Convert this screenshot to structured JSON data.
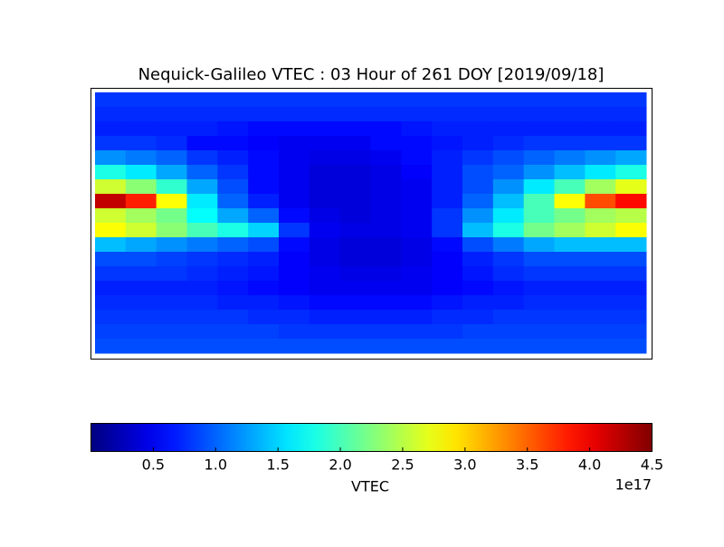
{
  "chart_data": {
    "type": "heatmap",
    "title": "Nequick-Galileo VTEC : 03 Hour of 261 DOY [2019/09/18]",
    "colormap": "jet",
    "values": [
      [
        0.8,
        0.8,
        0.8,
        0.8,
        0.8,
        0.8,
        0.8,
        0.8,
        0.8,
        0.8,
        0.8,
        0.8,
        0.8,
        0.8,
        0.8,
        0.8,
        0.8,
        0.8
      ],
      [
        0.75,
        0.75,
        0.75,
        0.75,
        0.75,
        0.75,
        0.75,
        0.75,
        0.75,
        0.75,
        0.75,
        0.75,
        0.75,
        0.75,
        0.75,
        0.75,
        0.75,
        0.75
      ],
      [
        0.7,
        0.7,
        0.7,
        0.7,
        0.65,
        0.6,
        0.6,
        0.6,
        0.6,
        0.6,
        0.65,
        0.7,
        0.7,
        0.7,
        0.7,
        0.7,
        0.7,
        0.7
      ],
      [
        0.8,
        0.8,
        0.75,
        0.6,
        0.6,
        0.55,
        0.5,
        0.5,
        0.5,
        0.6,
        0.6,
        0.65,
        0.7,
        0.75,
        0.8,
        0.8,
        0.8,
        0.8
      ],
      [
        1.2,
        1.1,
        1.0,
        0.8,
        0.7,
        0.6,
        0.5,
        0.45,
        0.45,
        0.5,
        0.6,
        0.7,
        0.8,
        0.9,
        1.0,
        1.1,
        1.2,
        1.3
      ],
      [
        1.8,
        1.6,
        1.3,
        1.0,
        0.8,
        0.6,
        0.5,
        0.4,
        0.4,
        0.45,
        0.55,
        0.7,
        0.9,
        1.0,
        1.2,
        1.4,
        1.6,
        1.8
      ],
      [
        2.6,
        2.3,
        1.9,
        1.3,
        0.9,
        0.6,
        0.5,
        0.4,
        0.4,
        0.45,
        0.5,
        0.7,
        0.9,
        1.2,
        1.6,
        2.0,
        2.4,
        2.7
      ],
      [
        4.2,
        3.8,
        2.8,
        1.6,
        1.0,
        0.7,
        0.5,
        0.4,
        0.4,
        0.45,
        0.5,
        0.7,
        1.0,
        1.4,
        2.0,
        2.8,
        3.6,
        3.9
      ],
      [
        2.6,
        2.4,
        2.2,
        1.7,
        1.3,
        1.0,
        0.6,
        0.45,
        0.4,
        0.45,
        0.5,
        0.8,
        1.2,
        1.6,
        2.0,
        2.2,
        2.4,
        2.5
      ],
      [
        2.8,
        2.6,
        2.3,
        2.0,
        1.8,
        1.5,
        0.8,
        0.5,
        0.45,
        0.45,
        0.5,
        0.8,
        1.4,
        1.8,
        2.2,
        2.4,
        2.6,
        2.8
      ],
      [
        1.4,
        1.3,
        1.2,
        1.1,
        1.0,
        0.9,
        0.6,
        0.45,
        0.4,
        0.4,
        0.45,
        0.6,
        0.9,
        1.1,
        1.3,
        1.4,
        1.4,
        1.4
      ],
      [
        0.9,
        0.9,
        0.85,
        0.8,
        0.75,
        0.7,
        0.55,
        0.45,
        0.4,
        0.4,
        0.45,
        0.55,
        0.7,
        0.8,
        0.9,
        0.9,
        0.9,
        0.9
      ],
      [
        0.8,
        0.8,
        0.8,
        0.75,
        0.7,
        0.65,
        0.55,
        0.5,
        0.45,
        0.45,
        0.5,
        0.55,
        0.65,
        0.75,
        0.8,
        0.8,
        0.8,
        0.8
      ],
      [
        0.7,
        0.7,
        0.7,
        0.7,
        0.65,
        0.6,
        0.55,
        0.5,
        0.5,
        0.5,
        0.5,
        0.55,
        0.6,
        0.65,
        0.7,
        0.7,
        0.7,
        0.7
      ],
      [
        0.75,
        0.75,
        0.75,
        0.75,
        0.7,
        0.7,
        0.65,
        0.6,
        0.6,
        0.6,
        0.6,
        0.65,
        0.7,
        0.7,
        0.75,
        0.75,
        0.75,
        0.75
      ],
      [
        0.8,
        0.8,
        0.8,
        0.8,
        0.8,
        0.75,
        0.75,
        0.7,
        0.7,
        0.7,
        0.7,
        0.75,
        0.75,
        0.8,
        0.8,
        0.8,
        0.8,
        0.8
      ],
      [
        0.85,
        0.85,
        0.85,
        0.85,
        0.85,
        0.85,
        0.8,
        0.8,
        0.8,
        0.8,
        0.8,
        0.8,
        0.85,
        0.85,
        0.85,
        0.85,
        0.85,
        0.85
      ],
      [
        0.9,
        0.9,
        0.9,
        0.9,
        0.9,
        0.9,
        0.9,
        0.9,
        0.9,
        0.9,
        0.9,
        0.9,
        0.9,
        0.9,
        0.9,
        0.9,
        0.9,
        0.9
      ]
    ],
    "colorbar": {
      "label": "VTEC",
      "lim": [
        0,
        4.5
      ],
      "offset_label": "1e17",
      "ticks": [
        0.5,
        {
          "value": 1,
          "label": "1.0"
        },
        1.5,
        {
          "value": 2,
          "label": "2.0"
        },
        2.5,
        {
          "value": 3,
          "label": "3.0"
        },
        3.5,
        {
          "value": 4,
          "label": "4.0"
        },
        4.5
      ]
    }
  }
}
